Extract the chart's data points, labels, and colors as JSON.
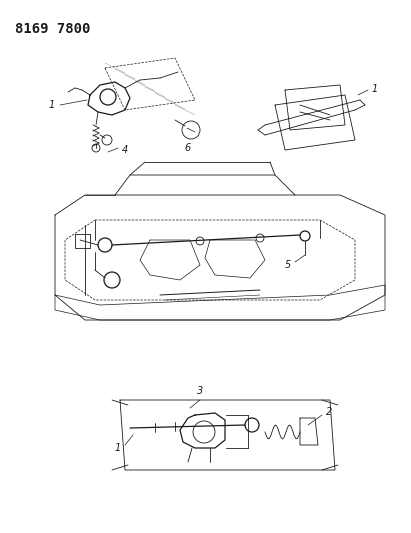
{
  "title": "8169 7800",
  "background_color": "#ffffff",
  "fig_width": 4.11,
  "fig_height": 5.33,
  "dpi": 100,
  "color": "#1a1a1a",
  "lw": 0.6,
  "lw_thick": 0.9
}
